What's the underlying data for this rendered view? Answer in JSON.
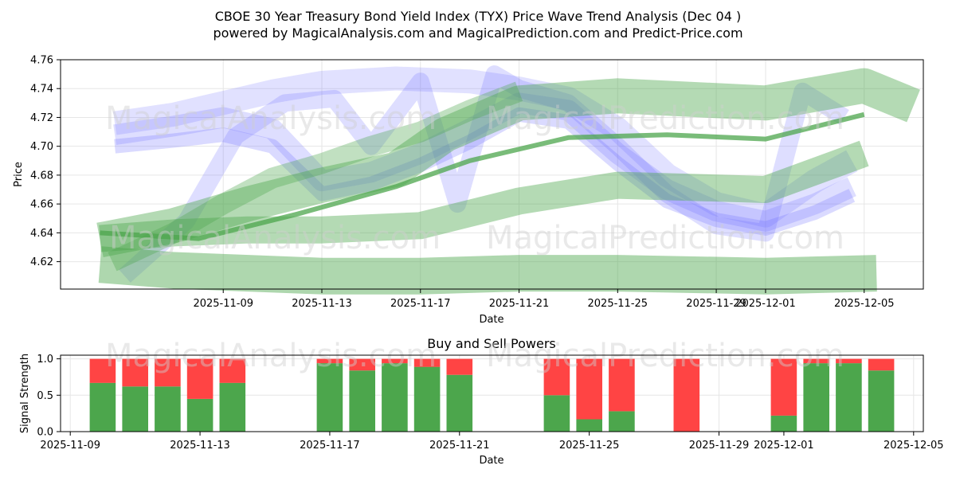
{
  "title_line1": "CBOE 30 Year Treasury Bond Yield Index (TYX) Price Wave Trend Analysis (Dec 04 )",
  "title_line2": "powered by MagicalAnalysis.com and MagicalPrediction.com and Predict-Price.com",
  "watermarks": [
    "MagicalAnalysis.com",
    "MagicalPrediction.com"
  ],
  "colors": {
    "buy": "#4ca64c",
    "sell": "#ff4444",
    "wave_blue": "#6b6bff",
    "wave_green": "#4ca64c",
    "grid": "#e6e6e6"
  },
  "chart_data": [
    {
      "type": "line",
      "title": "",
      "xlabel": "Date",
      "ylabel": "Price",
      "x_range_days": [
        -4.6,
        30.4
      ],
      "ylim": [
        4.601,
        4.76
      ],
      "x_ticks": [
        {
          "day": 2,
          "label": "2025-11-09"
        },
        {
          "day": 6,
          "label": "2025-11-13"
        },
        {
          "day": 10,
          "label": "2025-11-17"
        },
        {
          "day": 14,
          "label": "2025-11-21"
        },
        {
          "day": 18,
          "label": "2025-11-25"
        },
        {
          "day": 22,
          "label": "2025-11-29"
        },
        {
          "day": 24,
          "label": "2025-12-01"
        },
        {
          "day": 28,
          "label": "2025-12-05"
        }
      ],
      "y_ticks": [
        "4.62",
        "4.64",
        "4.66",
        "4.68",
        "4.70",
        "4.72",
        "4.74",
        "4.76"
      ],
      "grid": true,
      "series": [
        {
          "name": "blue-wave-1",
          "color": "blue",
          "x": [
            -2.4,
            0,
            2,
            4,
            6,
            8,
            10,
            12,
            14,
            16,
            18,
            20,
            22,
            24,
            26,
            27.5
          ],
          "y": [
            4.708,
            4.714,
            4.72,
            4.712,
            4.676,
            4.682,
            4.695,
            4.712,
            4.73,
            4.725,
            4.695,
            4.67,
            4.655,
            4.648,
            4.66,
            4.672
          ]
        },
        {
          "name": "blue-wave-2",
          "color": "blue",
          "x": [
            -2.4,
            0,
            2,
            4,
            6,
            8,
            10,
            12,
            14,
            16,
            18,
            20,
            22,
            24,
            26,
            27.5
          ],
          "y": [
            4.7,
            4.704,
            4.708,
            4.7,
            4.667,
            4.674,
            4.687,
            4.703,
            4.722,
            4.717,
            4.688,
            4.662,
            4.649,
            4.643,
            4.654,
            4.666
          ]
        },
        {
          "name": "blue-wave-3",
          "color": "blue",
          "x": [
            -2.4,
            0,
            2,
            4,
            6,
            9,
            12,
            14,
            16,
            18,
            20,
            22,
            24,
            26,
            27.5
          ],
          "y": [
            4.716,
            4.722,
            4.73,
            4.738,
            4.744,
            4.747,
            4.745,
            4.74,
            4.733,
            4.712,
            4.68,
            4.66,
            4.652,
            4.676,
            4.69
          ]
        },
        {
          "name": "blue-wave-4",
          "color": "blue",
          "x": [
            -2,
            0.5,
            2.5,
            4.5,
            6.5,
            8,
            10,
            11.5,
            13,
            14,
            16,
            18,
            20,
            22,
            24,
            25.5,
            27.2
          ],
          "y": [
            4.61,
            4.648,
            4.707,
            4.73,
            4.733,
            4.7,
            4.745,
            4.66,
            4.75,
            4.74,
            4.73,
            4.7,
            4.667,
            4.645,
            4.64,
            4.738,
            4.72
          ]
        },
        {
          "name": "green-band-1",
          "color": "green",
          "x": [
            -3,
            0,
            3,
            6,
            9,
            11,
            14,
            18,
            24,
            28,
            30
          ],
          "y": [
            4.635,
            4.645,
            4.66,
            4.673,
            4.684,
            4.708,
            4.73,
            4.735,
            4.73,
            4.742,
            4.728
          ]
        },
        {
          "name": "green-band-2",
          "color": "green",
          "x": [
            -3,
            0,
            3,
            6,
            10,
            14,
            18,
            24,
            28
          ],
          "y": [
            4.636,
            4.64,
            4.642,
            4.642,
            4.645,
            4.662,
            4.673,
            4.67,
            4.695
          ]
        },
        {
          "name": "green-band-3",
          "color": "green",
          "x": [
            -3,
            0,
            3,
            6,
            10,
            14,
            18,
            24,
            28.5
          ],
          "y": [
            4.618,
            4.614,
            4.612,
            4.61,
            4.61,
            4.612,
            4.612,
            4.61,
            4.612
          ]
        },
        {
          "name": "green-band-4",
          "color": "green",
          "x": [
            -2.5,
            0,
            2,
            4,
            6,
            8,
            10,
            12,
            14
          ],
          "y": [
            4.62,
            4.64,
            4.66,
            4.678,
            4.688,
            4.7,
            4.71,
            4.725,
            4.738
          ]
        },
        {
          "name": "green-trend",
          "color": "green",
          "x": [
            -3,
            1,
            5,
            9,
            12,
            16,
            20,
            24,
            28
          ],
          "y": [
            4.64,
            4.636,
            4.653,
            4.672,
            4.69,
            4.706,
            4.708,
            4.705,
            4.722
          ]
        }
      ]
    },
    {
      "type": "bar",
      "title": "Buy and Sell Powers",
      "xlabel": "Date",
      "ylabel": "Signal Strength",
      "x_range_days": [
        -0.3,
        26.3
      ],
      "ylim": [
        0,
        1.05
      ],
      "x_ticks": [
        {
          "day": 0,
          "label": "2025-11-09"
        },
        {
          "day": 4,
          "label": "2025-11-13"
        },
        {
          "day": 8,
          "label": "2025-11-17"
        },
        {
          "day": 12,
          "label": "2025-11-21"
        },
        {
          "day": 16,
          "label": "2025-11-25"
        },
        {
          "day": 20,
          "label": "2025-11-29"
        },
        {
          "day": 22,
          "label": "2025-12-01"
        },
        {
          "day": 26,
          "label": "2025-12-05"
        }
      ],
      "y_ticks": [
        "0.0",
        "0.5",
        "1.0"
      ],
      "grid": true,
      "bars": [
        {
          "day": 1,
          "buy": 0.67
        },
        {
          "day": 2,
          "buy": 0.62
        },
        {
          "day": 3,
          "buy": 0.62
        },
        {
          "day": 4,
          "buy": 0.45
        },
        {
          "day": 5,
          "buy": 0.67
        },
        {
          "day": 8,
          "buy": 0.94
        },
        {
          "day": 9,
          "buy": 0.84
        },
        {
          "day": 10,
          "buy": 0.94
        },
        {
          "day": 11,
          "buy": 0.89
        },
        {
          "day": 12,
          "buy": 0.78
        },
        {
          "day": 15,
          "buy": 0.5
        },
        {
          "day": 16,
          "buy": 0.17
        },
        {
          "day": 17,
          "buy": 0.28
        },
        {
          "day": 19,
          "buy": 0.0
        },
        {
          "day": 22,
          "buy": 0.22
        },
        {
          "day": 23,
          "buy": 0.94
        },
        {
          "day": 24,
          "buy": 0.94
        },
        {
          "day": 25,
          "buy": 0.84
        }
      ]
    }
  ]
}
